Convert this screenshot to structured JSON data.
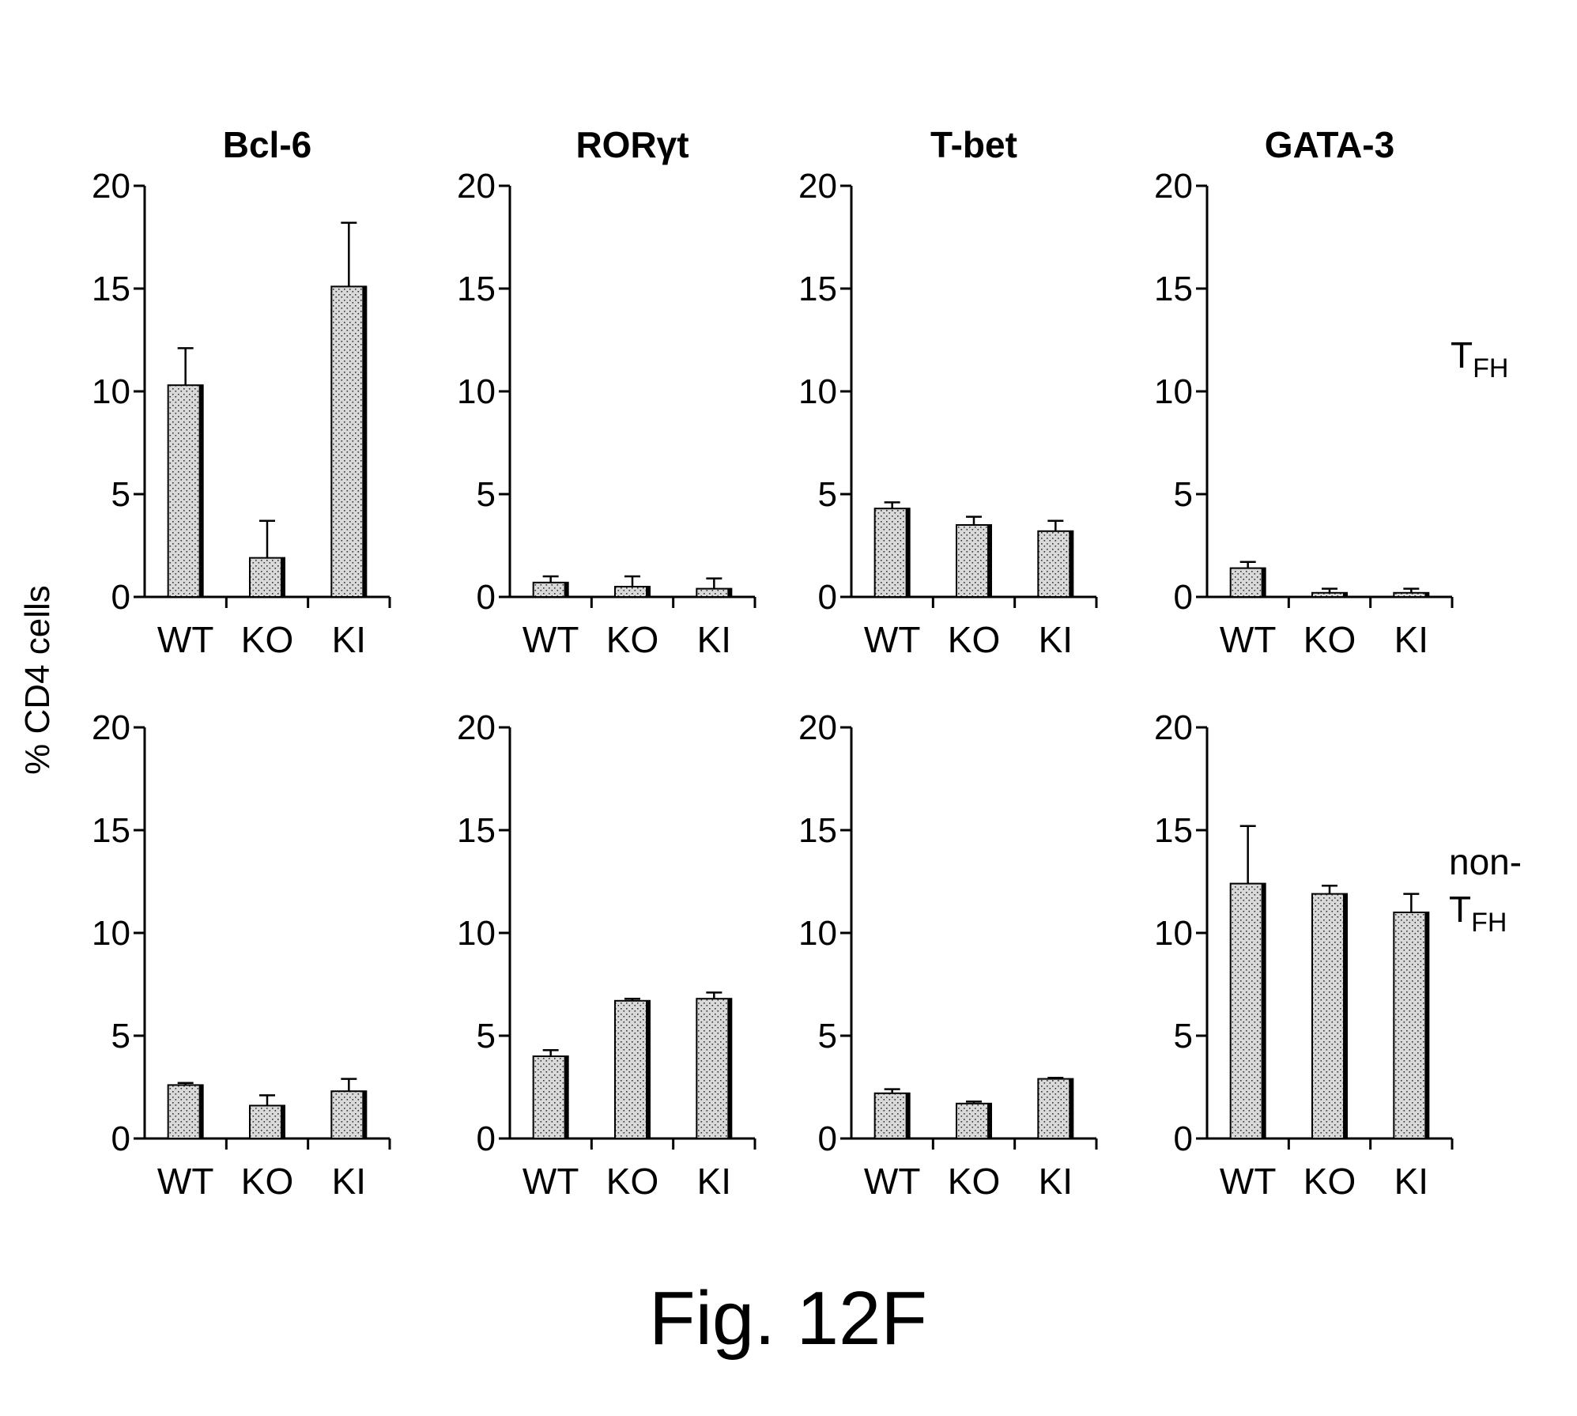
{
  "figure_label": "Fig. 12F",
  "y_axis_label": "% CD4 cells",
  "row_labels": [
    {
      "main": "T",
      "sub": "FH"
    },
    {
      "prefix": "non-",
      "main": "T",
      "sub": "FH"
    }
  ],
  "colors": {
    "bar_fill": "#d9d9d9",
    "bar_dots": "#333333",
    "ink": "#000000"
  },
  "chart_data": [
    {
      "type": "bar",
      "title": "Bcl-6",
      "row": "T_FH",
      "categories": [
        "WT",
        "KO",
        "KI"
      ],
      "values": [
        10.3,
        1.9,
        15.1
      ],
      "errors": [
        1.8,
        1.8,
        3.1
      ],
      "ylim": [
        0,
        20
      ],
      "yticks": [
        0,
        5,
        10,
        15,
        20
      ],
      "ylabel": "% CD4 cells"
    },
    {
      "type": "bar",
      "title": "RORγt",
      "row": "T_FH",
      "categories": [
        "WT",
        "KO",
        "KI"
      ],
      "values": [
        0.7,
        0.5,
        0.4
      ],
      "errors": [
        0.3,
        0.5,
        0.5
      ],
      "ylim": [
        0,
        20
      ],
      "yticks": [
        0,
        5,
        10,
        15,
        20
      ],
      "ylabel": "% CD4 cells"
    },
    {
      "type": "bar",
      "title": "T-bet",
      "row": "T_FH",
      "categories": [
        "WT",
        "KO",
        "KI"
      ],
      "values": [
        4.3,
        3.5,
        3.2
      ],
      "errors": [
        0.3,
        0.4,
        0.5
      ],
      "ylim": [
        0,
        20
      ],
      "yticks": [
        0,
        5,
        10,
        15,
        20
      ],
      "ylabel": "% CD4 cells"
    },
    {
      "type": "bar",
      "title": "GATA-3",
      "row": "T_FH",
      "categories": [
        "WT",
        "KO",
        "KI"
      ],
      "values": [
        1.4,
        0.2,
        0.2
      ],
      "errors": [
        0.3,
        0.2,
        0.2
      ],
      "ylim": [
        0,
        20
      ],
      "yticks": [
        0,
        5,
        10,
        15,
        20
      ],
      "ylabel": "% CD4 cells"
    },
    {
      "type": "bar",
      "title": "",
      "row": "non-T_FH",
      "categories": [
        "WT",
        "KO",
        "KI"
      ],
      "values": [
        2.6,
        1.6,
        2.3
      ],
      "errors": [
        0.1,
        0.5,
        0.6
      ],
      "ylim": [
        0,
        20
      ],
      "yticks": [
        0,
        5,
        10,
        15,
        20
      ],
      "ylabel": "% CD4 cells"
    },
    {
      "type": "bar",
      "title": "",
      "row": "non-T_FH",
      "categories": [
        "WT",
        "KO",
        "KI"
      ],
      "values": [
        4.0,
        6.7,
        6.8
      ],
      "errors": [
        0.3,
        0.1,
        0.3
      ],
      "ylim": [
        0,
        20
      ],
      "yticks": [
        0,
        5,
        10,
        15,
        20
      ],
      "ylabel": "% CD4 cells"
    },
    {
      "type": "bar",
      "title": "",
      "row": "non-T_FH",
      "categories": [
        "WT",
        "KO",
        "KI"
      ],
      "values": [
        2.2,
        1.7,
        2.9
      ],
      "errors": [
        0.2,
        0.1,
        0.05
      ],
      "ylim": [
        0,
        20
      ],
      "yticks": [
        0,
        5,
        10,
        15,
        20
      ],
      "ylabel": "% CD4 cells"
    },
    {
      "type": "bar",
      "title": "",
      "row": "non-T_FH",
      "categories": [
        "WT",
        "KO",
        "KI"
      ],
      "values": [
        12.4,
        11.9,
        11.0
      ],
      "errors": [
        2.8,
        0.4,
        0.9
      ],
      "ylim": [
        0,
        20
      ],
      "yticks": [
        0,
        5,
        10,
        15,
        20
      ],
      "ylabel": "% CD4 cells"
    }
  ]
}
